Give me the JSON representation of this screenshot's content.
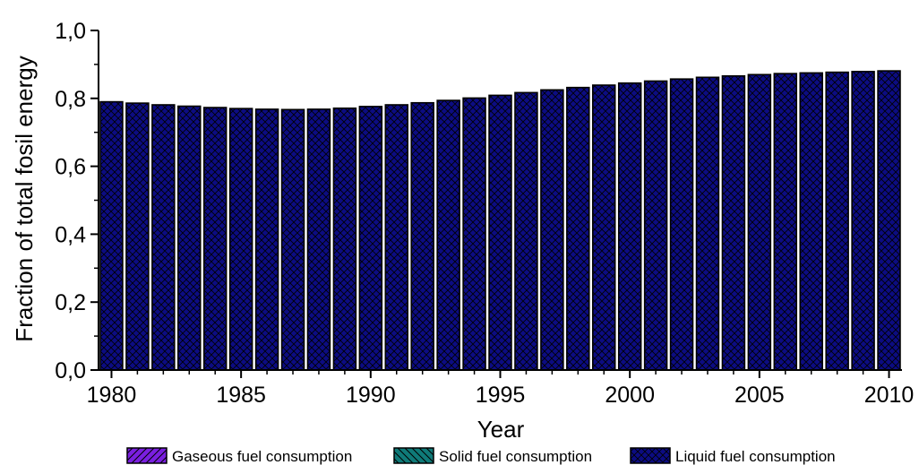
{
  "chart_data": {
    "type": "bar",
    "stacked": true,
    "xlabel": "Year",
    "ylabel": "Fraction of total fosil energy",
    "ylim": [
      0.0,
      1.0
    ],
    "xlim": [
      1979.5,
      2010.5
    ],
    "yticks": [
      "0,0",
      "0,2",
      "0,4",
      "0,6",
      "0,8",
      "1,0"
    ],
    "xticks": [
      "1980",
      "1985",
      "1990",
      "1995",
      "2000",
      "2005",
      "2010"
    ],
    "legend_position": "bottom",
    "grid": false,
    "categories": [
      1980,
      1981,
      1982,
      1983,
      1984,
      1985,
      1986,
      1987,
      1988,
      1989,
      1990,
      1991,
      1992,
      1993,
      1994,
      1995,
      1996,
      1997,
      1998,
      1999,
      2000,
      2001,
      2002,
      2003,
      2004,
      2005,
      2006,
      2007,
      2008,
      2009,
      2010
    ],
    "series": [
      {
        "name": "Gaseous fuel consumption",
        "color": "#7a1fe0",
        "hatch": "diagonal",
        "values": [
          0,
          0,
          0,
          0,
          0,
          0,
          0,
          0,
          0,
          0,
          0,
          0,
          0,
          0,
          0,
          0,
          0,
          0,
          0,
          0,
          0,
          0,
          0,
          0,
          0,
          0,
          0,
          0,
          0,
          0,
          0
        ]
      },
      {
        "name": "Solid fuel consumption",
        "color": "#0f7a78",
        "hatch": "back-diagonal",
        "values": [
          0,
          0,
          0,
          0,
          0,
          0,
          0,
          0,
          0,
          0,
          0,
          0,
          0,
          0,
          0,
          0,
          0,
          0,
          0,
          0,
          0,
          0,
          0,
          0,
          0,
          0,
          0,
          0,
          0,
          0,
          0
        ]
      },
      {
        "name": "Liquid fuel consumption",
        "color": "#0c0c82",
        "hatch": "crosshatch",
        "values": [
          0.79,
          0.786,
          0.781,
          0.777,
          0.773,
          0.77,
          0.768,
          0.767,
          0.768,
          0.771,
          0.776,
          0.781,
          0.787,
          0.794,
          0.801,
          0.809,
          0.817,
          0.825,
          0.832,
          0.839,
          0.845,
          0.851,
          0.857,
          0.862,
          0.866,
          0.87,
          0.873,
          0.875,
          0.877,
          0.879,
          0.881
        ]
      }
    ]
  }
}
